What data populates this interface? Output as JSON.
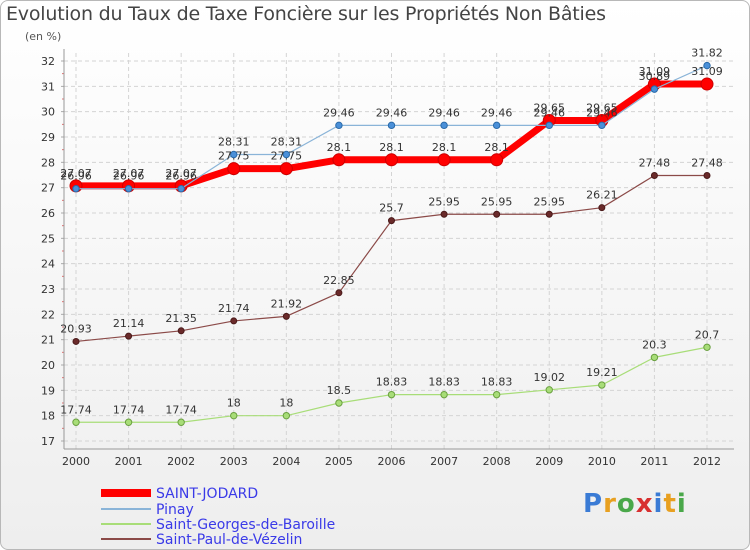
{
  "chart_data": {
    "type": "line",
    "title": "Evolution du Taux de Taxe Foncière sur les Propriétés Non Bâties",
    "subtitle": "(en %)",
    "xlabel": "",
    "ylabel": "(en %)",
    "x": [
      "2000",
      "2001",
      "2002",
      "2003",
      "2004",
      "2005",
      "2006",
      "2007",
      "2008",
      "2009",
      "2010",
      "2011",
      "2012"
    ],
    "ylim": [
      17,
      32
    ],
    "yticks": [
      17,
      18,
      19,
      20,
      21,
      22,
      23,
      24,
      25,
      26,
      27,
      28,
      29,
      30,
      31,
      32
    ],
    "grid": true,
    "legend_position": "bottom-left",
    "series": [
      {
        "name": "SAINT-JODARD",
        "color": "#ff0000",
        "values": [
          27.07,
          27.07,
          27.07,
          27.75,
          27.75,
          28.1,
          28.1,
          28.1,
          28.1,
          29.65,
          29.65,
          31.09,
          31.09
        ],
        "labels": [
          "27.07",
          "27.07",
          "27.07",
          "27.75",
          "27.75",
          "28.1",
          "28.1",
          "28.1",
          "28.1",
          "29.65",
          "29.65",
          "31.09",
          "31.09"
        ]
      },
      {
        "name": "Pinay",
        "color": "#8ab4d8",
        "values": [
          26.96,
          26.96,
          26.96,
          28.31,
          28.31,
          29.46,
          29.46,
          29.46,
          29.46,
          29.46,
          29.46,
          30.89,
          31.82
        ],
        "labels": [
          "26.96",
          "26.96",
          "26.96",
          "28.31",
          "28.31",
          "29.46",
          "29.46",
          "29.46",
          "29.46",
          "29.46",
          "29.46",
          "30.89",
          "31.82"
        ]
      },
      {
        "name": "Saint-Georges-de-Baroille",
        "color": "#a8dd78",
        "values": [
          17.74,
          17.74,
          17.74,
          18,
          18,
          18.5,
          18.83,
          18.83,
          18.83,
          19.02,
          19.21,
          20.3,
          20.7
        ],
        "labels": [
          "17.74",
          "17.74",
          "17.74",
          "18",
          "18",
          "18.5",
          "18.83",
          "18.83",
          "18.83",
          "19.02",
          "19.21",
          "20.3",
          "20.7"
        ]
      },
      {
        "name": "Saint-Paul-de-Vézelin",
        "color": "#8b4a48",
        "values": [
          20.93,
          21.14,
          21.35,
          21.74,
          21.92,
          22.85,
          25.7,
          25.95,
          25.95,
          25.95,
          26.21,
          27.48,
          27.48
        ],
        "labels": [
          "20.93",
          "21.14",
          "21.35",
          "21.74",
          "21.92",
          "22.85",
          "25.7",
          "25.95",
          "25.95",
          "25.95",
          "26.21",
          "27.48",
          "27.48"
        ]
      }
    ]
  },
  "logo": {
    "text": "Proxiti"
  }
}
